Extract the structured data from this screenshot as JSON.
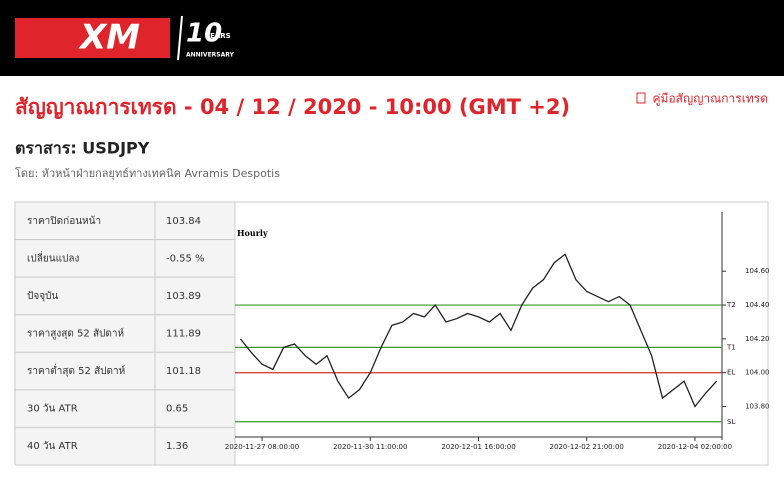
{
  "header": {
    "logo": "XM",
    "anniversary_number": "10",
    "anniversary_years": "YEARS",
    "anniversary_text": "ANNIVERSARY"
  },
  "title": "สัญญาณการเทรด - 04 / 12 / 2020 - 10:00 (GMT +2)",
  "guide_link": "คู่มือสัญญาณการเทรด",
  "instrument": "ตราสาร: USDJPY",
  "author": "โดย: หัวหน้าฝ่ายกลยุทธ์ทางเทคนิค Avramis Despotis",
  "table": {
    "rows": [
      [
        "ราคาปิดก่อนหน้า",
        "103.84"
      ],
      [
        "เปลี่ยนแปลง",
        "-0.55 %"
      ],
      [
        "ปัจจุบัน",
        "103.89"
      ],
      [
        "ราคาสูงสุด 52 สัปดาห์",
        "111.89"
      ],
      [
        "ราคาต่ำสุด 52 สัปดาห์",
        "101.18"
      ],
      [
        "30 วัน ATR",
        "0.65"
      ],
      [
        "40 วัน ATR",
        "1.36"
      ]
    ]
  },
  "chart_data": {
    "type": "line",
    "title": "Hourly",
    "color": "#222222",
    "categories": [
      null,
      null,
      "2020-11-27 08:00:00",
      null,
      null,
      null,
      null,
      null,
      null,
      null,
      null,
      null,
      "2020-11-30 11:00:00",
      null,
      null,
      null,
      null,
      null,
      null,
      null,
      null,
      null,
      "2020-12-01 16:00:00",
      null,
      null,
      null,
      null,
      null,
      null,
      null,
      null,
      null,
      "2020-12-02 21:00:00",
      null,
      null,
      null,
      null,
      null,
      null,
      null,
      null,
      null,
      "2020-12-04 02:00:00",
      null,
      null
    ],
    "values": [
      104.2,
      104.12,
      104.05,
      104.02,
      104.15,
      104.17,
      104.1,
      104.05,
      104.1,
      103.95,
      103.85,
      103.9,
      104.0,
      104.15,
      104.28,
      104.3,
      104.35,
      104.33,
      104.4,
      104.3,
      104.32,
      104.35,
      104.33,
      104.3,
      104.35,
      104.25,
      104.4,
      104.5,
      104.55,
      104.65,
      104.7,
      104.55,
      104.48,
      104.45,
      104.42,
      104.45,
      104.4,
      104.25,
      104.1,
      103.85,
      103.9,
      103.95,
      103.8,
      103.88,
      103.95
    ],
    "ylim": [
      103.62,
      104.95
    ],
    "yticks": [
      {
        "value": 103.8,
        "label": "103.80"
      },
      {
        "value": 104.0,
        "label": "104.00"
      },
      {
        "value": 104.2,
        "label": "104.20"
      },
      {
        "value": 104.4,
        "label": "104.40"
      },
      {
        "value": 104.6,
        "label": "104.60"
      }
    ],
    "levels": [
      {
        "label": "T2",
        "value": 104.4,
        "color": "#3a9a2a"
      },
      {
        "label": "T1",
        "value": 104.15,
        "color": "#3a9a2a"
      },
      {
        "label": "EL",
        "value": 104.0,
        "color": "#d03030"
      },
      {
        "label": "SL",
        "value": 103.71,
        "color": "#3a9a2a"
      }
    ]
  }
}
